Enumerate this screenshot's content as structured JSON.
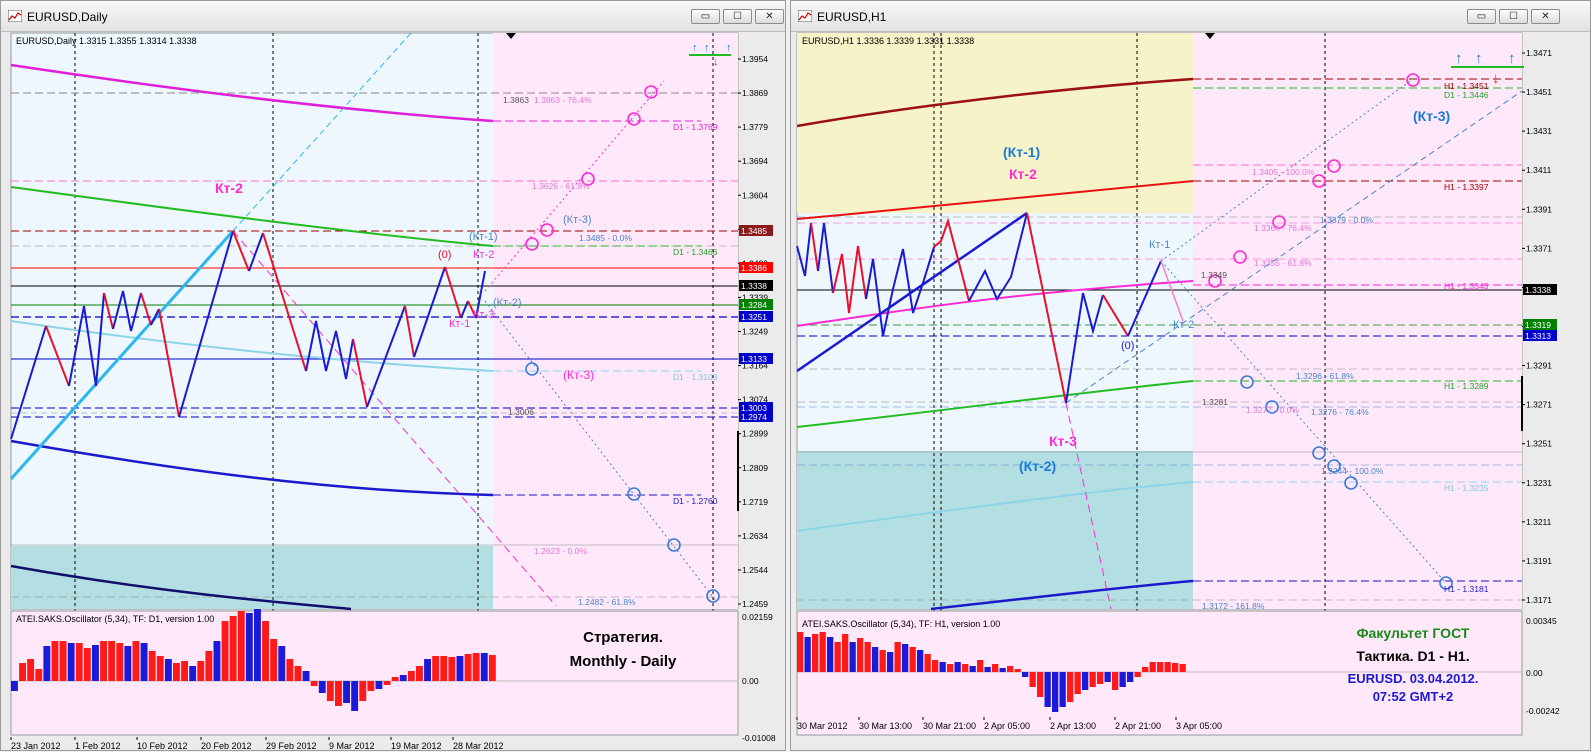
{
  "left": {
    "window_title": "EURUSD,Daily",
    "chart_header": "EURUSD,Daily  1.3315 1.3355 1.3314 1.3338",
    "price_scale": [
      "1.3954",
      "1.3869",
      "1.3779",
      "1.3694",
      "1.3604",
      "1.3514",
      "1.3429",
      "1.3339",
      "1.3249",
      "1.3164",
      "1.3074",
      "1.2899",
      "1.2809",
      "1.2719",
      "1.2634",
      "1.2544",
      "1.2459"
    ],
    "price_badges": [
      {
        "text": "1.3485",
        "bg": "#8b1a1a"
      },
      {
        "text": "1.3386",
        "bg": "#ff0000"
      },
      {
        "text": "1.3338",
        "bg": "#000000"
      },
      {
        "text": "1.3284",
        "bg": "#008000"
      },
      {
        "text": "1.3251",
        "bg": "#0000cd"
      },
      {
        "text": "1.3133",
        "bg": "#0000cd"
      },
      {
        "text": "1.3003",
        "bg": "#0000cd"
      },
      {
        "text": "1.2974",
        "bg": "#0000cd"
      }
    ],
    "chart_labels": {
      "kt2_big": "Кт-2",
      "zero": "(0)",
      "kt2_small": "Кт-2",
      "kt1_paren": "(Кт-1)",
      "kt3_paren_top": "(Кт-3)",
      "kt2_paren": "(Кт-2)",
      "kt1": "Кт-1",
      "kt3": "Кт-3",
      "kt3_paren_mid": "(Кт-3)"
    },
    "levels": {
      "fib_3863": "1.3863 - 76.4%",
      "fib_3863_left": "1.3863",
      "d1_3769": "D1 - 1.3769",
      "fib_3626": "1.3626 - 61.8%",
      "fib_3485": "1.3485 - 0.0%",
      "d1_3466": "D1 - 1.3466",
      "d1_3103": "D1 - 1.3103",
      "fib_3006": "1.3006",
      "d1_2760": "D1 - 1.2760",
      "fib_2623": "1.2623 - 0.0%",
      "fib_2482": "1.2482 - 61.8%"
    },
    "osc_header": "ATEI.SAKS.Oscillator (5,34), TF: D1,  version 1.00",
    "osc_scale": [
      "0.02159",
      "0.00",
      "-0.01008"
    ],
    "strategy_line1": "Стратегия.",
    "strategy_line2": "Monthly - Daily",
    "time_axis": [
      "23 Jan 2012",
      "1 Feb 2012",
      "10 Feb 2012",
      "20 Feb 2012",
      "29 Feb 2012",
      "9 Mar 2012",
      "19 Mar 2012",
      "28 Mar 2012"
    ]
  },
  "right": {
    "window_title": "EURUSD,H1",
    "chart_header": "EURUSD,H1  1.3336 1.3339 1.3331 1.3338",
    "price_scale": [
      "1.3471",
      "1.3451",
      "1.3431",
      "1.3411",
      "1.3391",
      "1.3371",
      "1.3351",
      "1.3331",
      "1.3291",
      "1.3271",
      "1.3251",
      "1.3231",
      "1.3211",
      "1.3191",
      "1.3171"
    ],
    "price_badges": [
      {
        "text": "1.3338",
        "bg": "#000000"
      },
      {
        "text": "1.3319",
        "bg": "#008000"
      },
      {
        "text": "1.3313",
        "bg": "#0000cd"
      }
    ],
    "chart_labels": {
      "kt1_paren": "(Кт-1)",
      "kt2_magenta": "Кт-2",
      "kt3_paren": "(Кт-3)",
      "kt1": "Кт-1",
      "kt2_small": "Кт-2",
      "zero": "(0)",
      "kt3": "Кт-3",
      "kt2_paren": "(Кт-2)"
    },
    "levels": {
      "h1_3451": "H1 - 1.3451",
      "d1_3446": "D1 - 1.3446",
      "fib_3405": "1.3405 - 100.0%",
      "h1_3397": "H1 - 1.3397",
      "fib_3379": "1.3379 - 0.0%",
      "fib_3366": "1.3366 - 76.4%",
      "fib_3355": "1.3355 - 61.8%",
      "fib_3349": "1.3349",
      "h1_3343": "H1 - 1.3343",
      "fib_3296": "1.3296 - 61.8%",
      "h1_3289": "H1 - 1.3289",
      "fib_3281": "1.3281",
      "fib_3277": "1.3277 - 0.0%",
      "fib_3276": "1.3276 - 76.4%",
      "fib_3244": "1.3244 - 100.0%",
      "h1_3235": "H1 - 1.3235",
      "h1_3181": "H1 - 1.3181",
      "fib_3172": "1.3172 - 161.8%"
    },
    "osc_header": "ATEI.SAKS.Oscillator (5,34), TF: H1,  version 1.00",
    "osc_scale": [
      "0.00345",
      "0.00",
      "-0.00242"
    ],
    "info_line1": "Факультет ГОСТ",
    "info_line2": "Тактика. D1 - H1.",
    "info_line3": "EURUSD. 03.04.2012.",
    "info_line4": "07:52  GMT+2",
    "time_axis": [
      "30 Mar 2012",
      "30 Mar 13:00",
      "30 Mar 21:00",
      "2 Apr 05:00",
      "2 Apr 13:00",
      "2 Apr 21:00",
      "3 Apr 05:00"
    ]
  },
  "window_buttons": {
    "minimize": "▭",
    "maximize": "☐",
    "close": "✕"
  },
  "colors": {
    "pink_zone": "#ffe8fa",
    "light_zone": "#eef7fd",
    "yellow_zone": "#f6f3c9",
    "teal_zone": "#b3dfe3",
    "zigzag_red": "#e8102a",
    "zigzag_blue": "#1a1ad0",
    "magenta": "#ff2ad4",
    "cyan": "#2ab7ef"
  }
}
